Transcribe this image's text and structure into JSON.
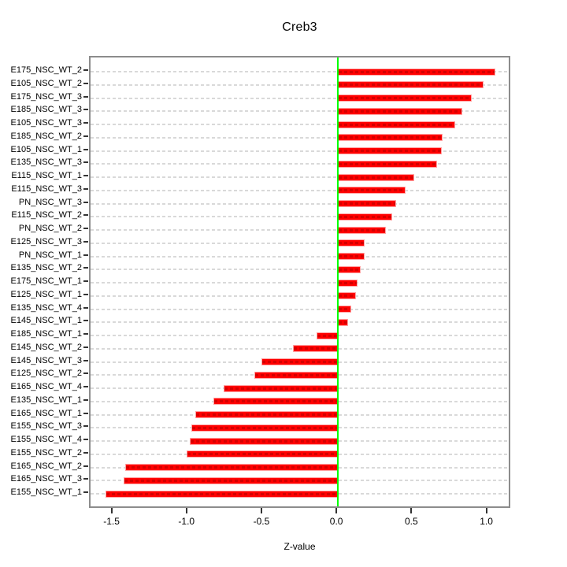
{
  "title": "Creb3",
  "chart_data": {
    "type": "bar",
    "orientation": "horizontal",
    "title": "Creb3",
    "xlabel": "Z-value",
    "ylabel": "",
    "xlim": [
      -1.65,
      1.16
    ],
    "grid": "dashed horizontal line per category row",
    "legend": "none",
    "zero_reference_line": 0.0,
    "x_ticks": [
      {
        "value": -1.5,
        "label": "-1.5"
      },
      {
        "value": -1.0,
        "label": "-1.0"
      },
      {
        "value": -0.5,
        "label": "-0.5"
      },
      {
        "value": 0.0,
        "label": "0.0"
      },
      {
        "value": 0.5,
        "label": "0.5"
      },
      {
        "value": 1.0,
        "label": "1.0"
      }
    ],
    "categories": [
      "E175_NSC_WT_2",
      "E105_NSC_WT_2",
      "E175_NSC_WT_3",
      "E185_NSC_WT_3",
      "E105_NSC_WT_3",
      "E185_NSC_WT_2",
      "E105_NSC_WT_1",
      "E135_NSC_WT_3",
      "E115_NSC_WT_1",
      "E115_NSC_WT_3",
      "PN_NSC_WT_3",
      "E115_NSC_WT_2",
      "PN_NSC_WT_2",
      "E125_NSC_WT_3",
      "PN_NSC_WT_1",
      "E135_NSC_WT_2",
      "E175_NSC_WT_1",
      "E125_NSC_WT_1",
      "E135_NSC_WT_4",
      "E145_NSC_WT_1",
      "E185_NSC_WT_1",
      "E145_NSC_WT_2",
      "E145_NSC_WT_3",
      "E125_NSC_WT_2",
      "E165_NSC_WT_4",
      "E135_NSC_WT_1",
      "E165_NSC_WT_1",
      "E155_NSC_WT_3",
      "E155_NSC_WT_4",
      "E155_NSC_WT_2",
      "E165_NSC_WT_2",
      "E165_NSC_WT_3",
      "E155_NSC_WT_1"
    ],
    "values": [
      1.05,
      0.97,
      0.89,
      0.83,
      0.78,
      0.7,
      0.69,
      0.66,
      0.51,
      0.45,
      0.39,
      0.36,
      0.32,
      0.18,
      0.18,
      0.15,
      0.13,
      0.12,
      0.09,
      0.07,
      -0.14,
      -0.3,
      -0.51,
      -0.56,
      -0.76,
      -0.83,
      -0.95,
      -0.98,
      -0.99,
      -1.01,
      -1.42,
      -1.43,
      -1.55
    ]
  },
  "colors": {
    "bar_fill": "#ff0000",
    "bar_edge": "#ffa3a3",
    "bar_inner_dash": "#d40000",
    "gridline": "#d9d9d9",
    "zero_line": "#00ff00",
    "plot_border": "#8c8c8c",
    "text": "#000000",
    "background": "#ffffff"
  }
}
